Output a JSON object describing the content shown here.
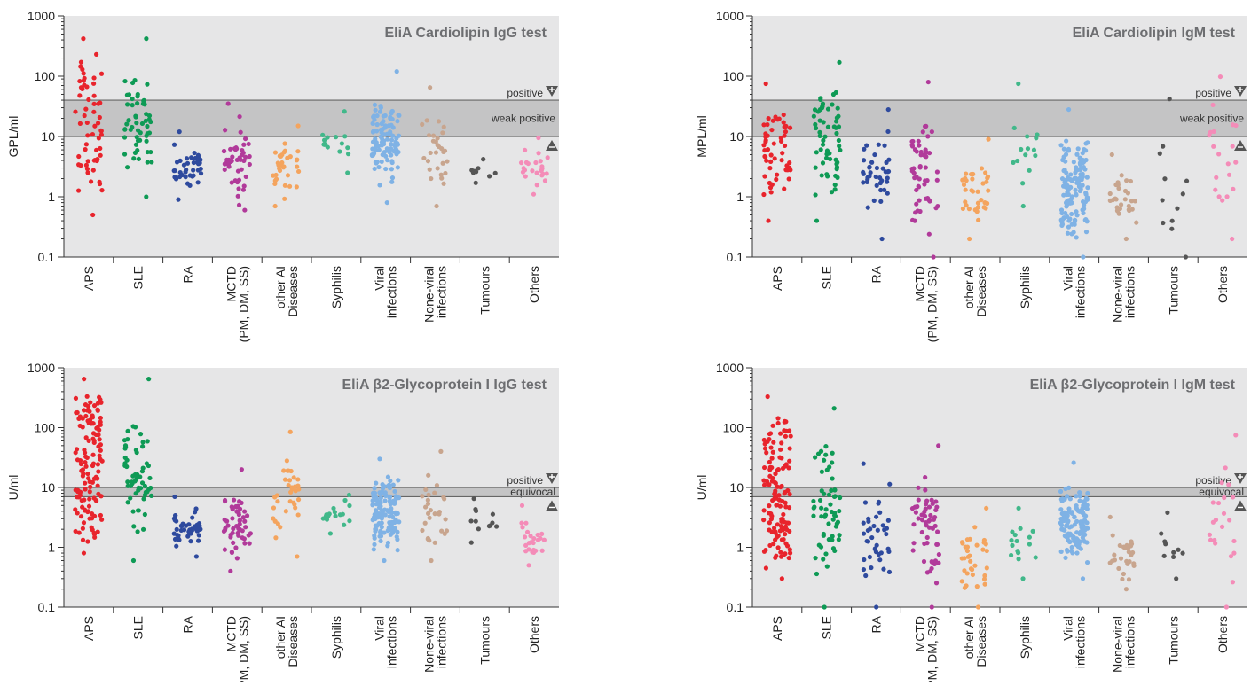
{
  "categories": [
    "APS",
    "SLE",
    "RA",
    "MCTD\n(PM, DM, SS)",
    "other AI\nDiseases",
    "Syphilis",
    "Viral\ninfections",
    "None-viral\ninfections",
    "Tumours",
    "Others"
  ],
  "category_colors": [
    "#e8242c",
    "#0e9a55",
    "#2e4a9e",
    "#b13a9a",
    "#f4a45e",
    "#41b88a",
    "#7fb2e5",
    "#c8a58e",
    "#555555",
    "#f48cb8"
  ],
  "y_tick_labels": [
    "0.1",
    "1",
    "10",
    "100",
    "1000"
  ],
  "chart_data": [
    {
      "type": "scatter",
      "title": "EliA Cardiolipin IgG test",
      "ylabel": "GPL/ml",
      "yscale": "log",
      "ylim": [
        0.1,
        1000
      ],
      "bands": [
        {
          "from": 10,
          "to": 40,
          "label": "weak positive"
        }
      ],
      "positive_label": "positive",
      "cutoff_line": 40,
      "lower_line": 10,
      "groups": [
        {
          "category": "APS",
          "n": 60,
          "min": 0.5,
          "max": 420,
          "spread": 0.8
        },
        {
          "category": "SLE",
          "n": 55,
          "min": 1.0,
          "max": 420,
          "spread": 0.3
        },
        {
          "category": "RA",
          "n": 40,
          "min": 0.9,
          "max": 12,
          "spread": 0.4
        },
        {
          "category": "MCTD\n(PM, DM, SS)",
          "n": 50,
          "min": 0.6,
          "max": 35,
          "spread": 0.4
        },
        {
          "category": "other AI\nDiseases",
          "n": 35,
          "min": 0.7,
          "max": 15,
          "spread": 0.5
        },
        {
          "category": "Syphilis",
          "n": 15,
          "min": 2.5,
          "max": 26,
          "spread": 0.3
        },
        {
          "category": "Viral\ninfections",
          "n": 110,
          "min": 0.8,
          "max": 120,
          "spread": 0.35
        },
        {
          "category": "None-viral\ninfections",
          "n": 30,
          "min": 0.7,
          "max": 65,
          "spread": 0.35
        },
        {
          "category": "Tumours",
          "n": 10,
          "min": 1.7,
          "max": 4.2,
          "spread": 0.3
        },
        {
          "category": "Others",
          "n": 25,
          "min": 1.1,
          "max": 9.5,
          "spread": 0.3
        }
      ]
    },
    {
      "type": "scatter",
      "title": "EliA Cardiolipin IgM test",
      "ylabel": "MPL/ml",
      "yscale": "log",
      "ylim": [
        0.1,
        1000
      ],
      "bands": [
        {
          "from": 10,
          "to": 40,
          "label": "weak positive"
        }
      ],
      "positive_label": "positive",
      "cutoff_line": 40,
      "lower_line": 10,
      "groups": [
        {
          "category": "APS",
          "n": 55,
          "min": 0.4,
          "max": 75,
          "spread": 0.5
        },
        {
          "category": "SLE",
          "n": 60,
          "min": 0.4,
          "max": 170,
          "spread": 0.6
        },
        {
          "category": "RA",
          "n": 40,
          "min": 0.2,
          "max": 28,
          "spread": 0.4
        },
        {
          "category": "MCTD\n(PM, DM, SS)",
          "n": 55,
          "min": 0.1,
          "max": 80,
          "spread": 0.5
        },
        {
          "category": "other AI\nDiseases",
          "n": 35,
          "min": 0.2,
          "max": 9,
          "spread": 0.5
        },
        {
          "category": "Syphilis",
          "n": 15,
          "min": 0.7,
          "max": 75,
          "spread": 0.4
        },
        {
          "category": "Viral\ninfections",
          "n": 130,
          "min": 0.1,
          "max": 28,
          "spread": 0.45
        },
        {
          "category": "None-viral\ninfections",
          "n": 30,
          "min": 0.2,
          "max": 5,
          "spread": 0.35
        },
        {
          "category": "Tumours",
          "n": 12,
          "min": 0.1,
          "max": 42,
          "spread": 0.6
        },
        {
          "category": "Others",
          "n": 20,
          "min": 0.2,
          "max": 98,
          "spread": 0.5
        }
      ]
    },
    {
      "type": "scatter",
      "title": "EliA β2-Glycoprotein I IgG test",
      "ylabel": "U/ml",
      "yscale": "log",
      "ylim": [
        0.1,
        1000
      ],
      "bands": [
        {
          "from": 7,
          "to": 10,
          "label": "equivocal"
        }
      ],
      "positive_label": "positive",
      "cutoff_line": 10,
      "lower_line": 7,
      "groups": [
        {
          "category": "APS",
          "n": 130,
          "min": 0.8,
          "max": 650,
          "spread": 0.8
        },
        {
          "category": "SLE",
          "n": 60,
          "min": 0.6,
          "max": 650,
          "spread": 0.35
        },
        {
          "category": "RA",
          "n": 45,
          "min": 0.7,
          "max": 7,
          "spread": 0.35
        },
        {
          "category": "MCTD\n(PM, DM, SS)",
          "n": 55,
          "min": 0.4,
          "max": 20,
          "spread": 0.45
        },
        {
          "category": "other AI\nDiseases",
          "n": 35,
          "min": 0.7,
          "max": 85,
          "spread": 0.4
        },
        {
          "category": "Syphilis",
          "n": 18,
          "min": 1.7,
          "max": 7.5,
          "spread": 0.3
        },
        {
          "category": "Viral\ninfections",
          "n": 130,
          "min": 0.6,
          "max": 30,
          "spread": 0.45
        },
        {
          "category": "None-viral\ninfections",
          "n": 30,
          "min": 0.6,
          "max": 40,
          "spread": 0.35
        },
        {
          "category": "Tumours",
          "n": 12,
          "min": 1.2,
          "max": 6.5,
          "spread": 0.3
        },
        {
          "category": "Others",
          "n": 25,
          "min": 0.5,
          "max": 5,
          "spread": 0.35
        }
      ]
    },
    {
      "type": "scatter",
      "title": "EliA β2-Glycoprotein I IgM test",
      "ylabel": "U/ml",
      "yscale": "log",
      "ylim": [
        0.1,
        1000
      ],
      "bands": [
        {
          "from": 7,
          "to": 10,
          "label": "equivocal"
        }
      ],
      "positive_label": "positive",
      "cutoff_line": 10,
      "lower_line": 7,
      "groups": [
        {
          "category": "APS",
          "n": 130,
          "min": 0.3,
          "max": 330,
          "spread": 0.8
        },
        {
          "category": "SLE",
          "n": 60,
          "min": 0.1,
          "max": 210,
          "spread": 0.5
        },
        {
          "category": "RA",
          "n": 40,
          "min": 0.1,
          "max": 25,
          "spread": 0.5
        },
        {
          "category": "MCTD\n(PM, DM, SS)",
          "n": 55,
          "min": 0.1,
          "max": 50,
          "spread": 0.5
        },
        {
          "category": "other AI\nDiseases",
          "n": 35,
          "min": 0.1,
          "max": 4.5,
          "spread": 0.5
        },
        {
          "category": "Syphilis",
          "n": 16,
          "min": 0.3,
          "max": 4.5,
          "spread": 0.4
        },
        {
          "category": "Viral\ninfections",
          "n": 130,
          "min": 0.3,
          "max": 26,
          "spread": 0.45
        },
        {
          "category": "None-viral\ninfections",
          "n": 28,
          "min": 0.2,
          "max": 3.2,
          "spread": 0.35
        },
        {
          "category": "Tumours",
          "n": 10,
          "min": 0.3,
          "max": 3.8,
          "spread": 0.4
        },
        {
          "category": "Others",
          "n": 22,
          "min": 0.1,
          "max": 75,
          "spread": 0.4
        }
      ]
    }
  ]
}
